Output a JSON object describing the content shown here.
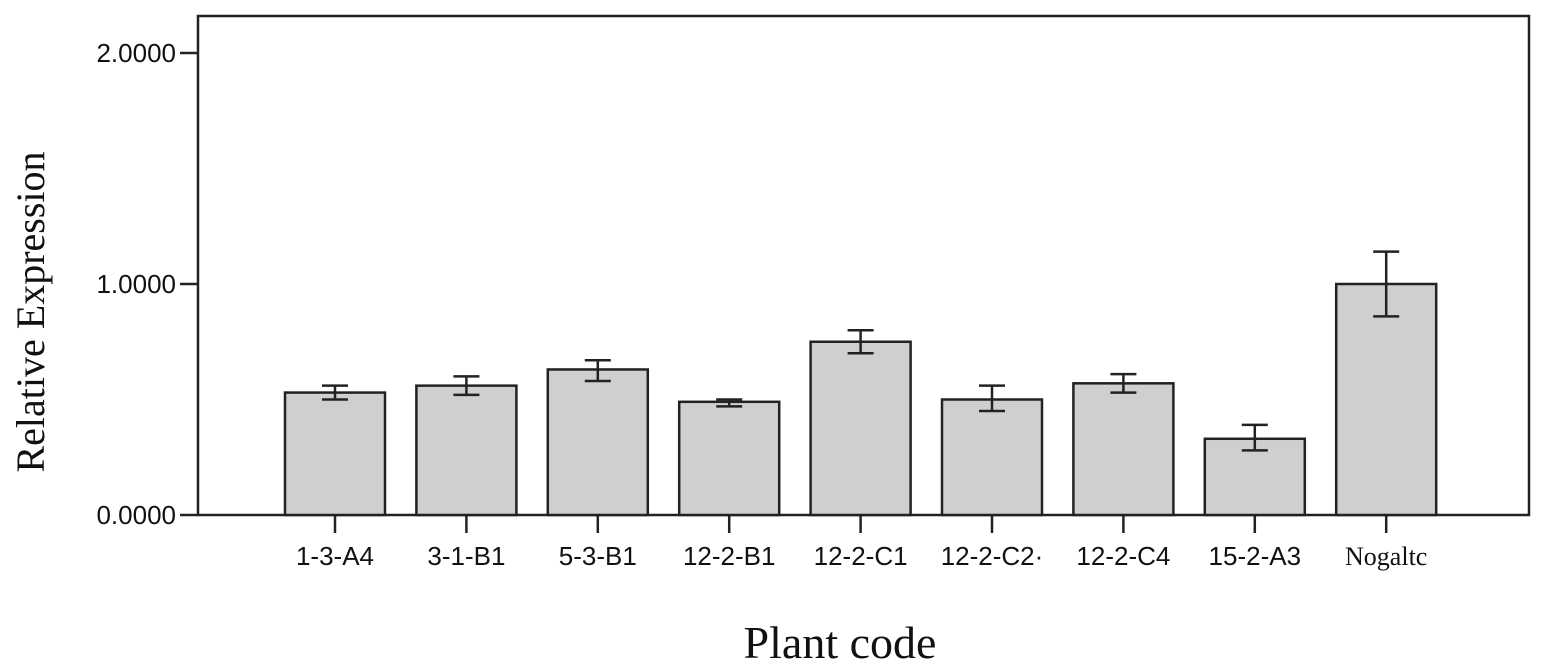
{
  "chart_data": {
    "type": "bar",
    "title": "",
    "xlabel": "Plant code",
    "ylabel": "Relative Expression",
    "ylim": [
      0,
      2.2
    ],
    "yticks": [
      {
        "value": 0,
        "label": "0.0000"
      },
      {
        "value": 1,
        "label": "1.0000"
      },
      {
        "value": 2,
        "label": "2.0000"
      }
    ],
    "grid": false,
    "legend": "none",
    "categories": [
      "1-3-A4",
      "3-1-B1",
      "5-3-B1",
      "12-2-B1",
      "12-2-C1",
      "12-2-C2",
      "12-2-C4",
      "15-2-A3",
      "Nogaltc"
    ],
    "category_labels": [
      "1-3-A4",
      "3-1-B1",
      "5-3-B1",
      "12-2-B1",
      "12-2-C1",
      "12-2-C2·",
      "12-2-C4",
      "15-2-A3",
      "Nogaltc"
    ],
    "values": [
      0.53,
      0.56,
      0.63,
      0.49,
      0.75,
      0.5,
      0.57,
      0.33,
      1.0
    ],
    "error_low": [
      0.5,
      0.52,
      0.58,
      0.47,
      0.7,
      0.45,
      0.53,
      0.28,
      0.86
    ],
    "error_high": [
      0.56,
      0.6,
      0.67,
      0.5,
      0.8,
      0.56,
      0.61,
      0.39,
      1.14
    ],
    "colors": {
      "bar_fill": "#cfcfcf",
      "bar_stroke": "#222222",
      "axis": "#222222",
      "text": "#111111"
    }
  }
}
